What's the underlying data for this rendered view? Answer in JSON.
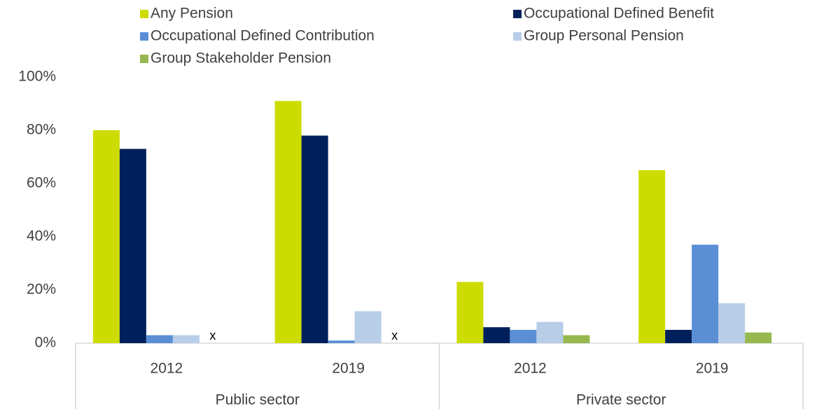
{
  "chart_data": {
    "type": "bar",
    "categories": [
      "2012",
      "2019",
      "2012",
      "2019"
    ],
    "groups": [
      "Public sector",
      "Private sector"
    ],
    "series": [
      {
        "name": "Any Pension",
        "color": "#cddc00",
        "values": [
          80,
          91,
          23,
          65
        ]
      },
      {
        "name": "Occupational Defined Benefit",
        "color": "#00205b",
        "values": [
          73,
          78,
          6,
          5
        ]
      },
      {
        "name": "Occupational Defined Contribution",
        "color": "#5a8fd6",
        "values": [
          3,
          1,
          5,
          37
        ]
      },
      {
        "name": "Group Personal Pension",
        "color": "#b8cde8",
        "values": [
          3,
          12,
          8,
          15
        ]
      },
      {
        "name": "Group Stakeholder Pension",
        "color": "#96b84e",
        "values": [
          null,
          null,
          3,
          4
        ],
        "value_labels": [
          "x",
          "x",
          null,
          null
        ]
      }
    ],
    "ylim": [
      0,
      100
    ],
    "yticks": [
      {
        "value": 0,
        "label": "0%"
      },
      {
        "value": 20,
        "label": "20%"
      },
      {
        "value": 40,
        "label": "40%"
      },
      {
        "value": 60,
        "label": "60%"
      },
      {
        "value": 80,
        "label": "80%"
      },
      {
        "value": 100,
        "label": "100%"
      }
    ],
    "grid": false
  }
}
